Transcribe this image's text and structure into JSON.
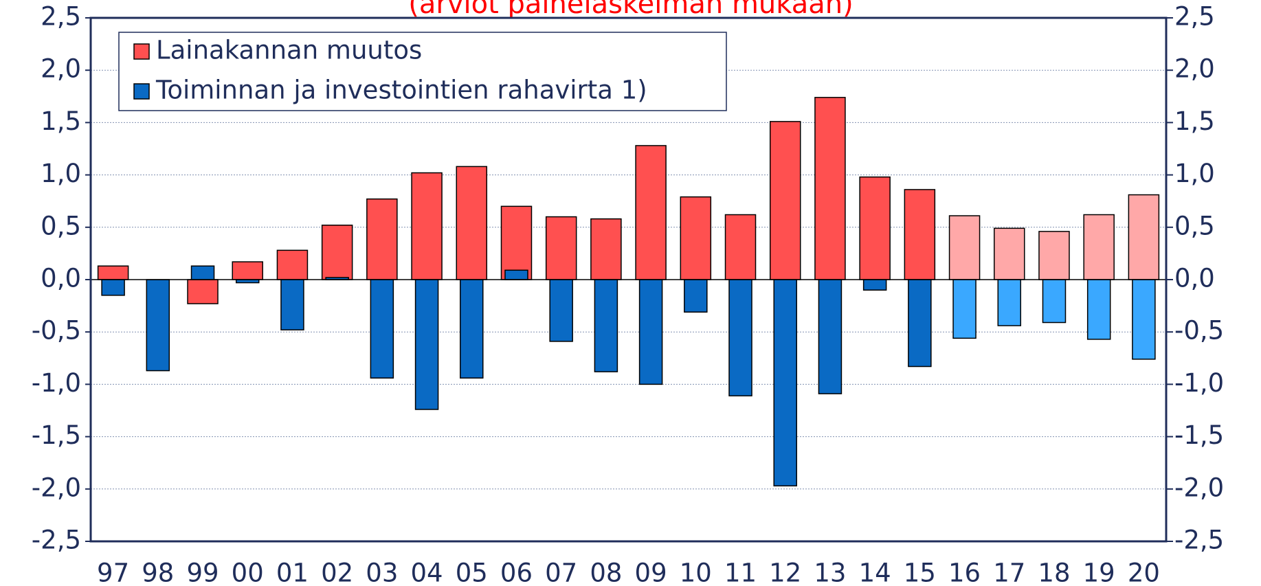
{
  "chart_data": {
    "type": "bar",
    "title": "(arviot painelaskelman mukaan)",
    "categories": [
      "97",
      "98",
      "99",
      "00",
      "01",
      "02",
      "03",
      "04",
      "05",
      "06",
      "07",
      "08",
      "09",
      "10",
      "11",
      "12",
      "13",
      "14",
      "15",
      "16",
      "17",
      "18",
      "19",
      "20"
    ],
    "series": [
      {
        "name": "Lainakannan muutos",
        "color": "#ff5050",
        "point_colors": [
          "#ff5050",
          "#ff5050",
          "#ff5050",
          "#ff5050",
          "#ff5050",
          "#ff5050",
          "#ff5050",
          "#ff5050",
          "#ff5050",
          "#ff5050",
          "#ff5050",
          "#ff5050",
          "#ff5050",
          "#ff5050",
          "#ff5050",
          "#ff5050",
          "#ff5050",
          "#ff5050",
          "#ff5050",
          "#ffa8a8",
          "#ffa8a8",
          "#ffa8a8",
          "#ffa8a8",
          "#ffa8a8"
        ],
        "values": [
          0.13,
          0,
          -0.23,
          0.17,
          0.28,
          0.52,
          0.77,
          1.02,
          1.08,
          0.7,
          0.6,
          0.58,
          1.28,
          0.79,
          0.62,
          1.51,
          1.74,
          0.98,
          0.86,
          0.61,
          0.49,
          0.46,
          0.62,
          0.81
        ]
      },
      {
        "name": "Toiminnan ja investointien rahavirta 1)",
        "color": "#0a6ac4",
        "point_colors": [
          "#0a6ac4",
          "#0a6ac4",
          "#0a6ac4",
          "#0a6ac4",
          "#0a6ac4",
          "#0a6ac4",
          "#0a6ac4",
          "#0a6ac4",
          "#0a6ac4",
          "#0a6ac4",
          "#0a6ac4",
          "#0a6ac4",
          "#0a6ac4",
          "#0a6ac4",
          "#0a6ac4",
          "#0a6ac4",
          "#0a6ac4",
          "#0a6ac4",
          "#0a6ac4",
          "#3aa8ff",
          "#3aa8ff",
          "#3aa8ff",
          "#3aa8ff",
          "#3aa8ff"
        ],
        "values": [
          -0.15,
          -0.87,
          0.13,
          -0.03,
          -0.48,
          0.02,
          -0.94,
          -1.24,
          -0.94,
          0.09,
          -0.59,
          -0.88,
          -1.0,
          -0.31,
          -1.11,
          -1.97,
          -1.09,
          -0.1,
          -0.83,
          -0.56,
          -0.44,
          -0.41,
          -0.57,
          -0.76
        ]
      }
    ],
    "ylim": [
      -2.5,
      2.5
    ],
    "yticks": [
      {
        "value": -2.5,
        "label": "-2,5"
      },
      {
        "value": -2,
        "label": "-2,0"
      },
      {
        "value": -1.5,
        "label": "-1,5"
      },
      {
        "value": -1,
        "label": "-1,0"
      },
      {
        "value": -0.5,
        "label": "-0,5"
      },
      {
        "value": 0,
        "label": "0,0"
      },
      {
        "value": 0.5,
        "label": "0,5"
      },
      {
        "value": 1,
        "label": "1,0"
      },
      {
        "value": 1.5,
        "label": "1,5"
      },
      {
        "value": 2,
        "label": "2,0"
      },
      {
        "value": 2.5,
        "label": "2,5"
      }
    ],
    "y2lim": [
      -2.5,
      2.5
    ],
    "y2ticks": [
      {
        "value": -2.5,
        "label": "-2,5"
      },
      {
        "value": -2,
        "label": "-2,0"
      },
      {
        "value": -1.5,
        "label": "-1,5"
      },
      {
        "value": -1,
        "label": "-1,0"
      },
      {
        "value": -0.5,
        "label": "-0,5"
      },
      {
        "value": 0,
        "label": "0,0"
      },
      {
        "value": 0.5,
        "label": "0,5"
      },
      {
        "value": 1,
        "label": "1,0"
      },
      {
        "value": 1.5,
        "label": "1,5"
      },
      {
        "value": 2,
        "label": "2,0"
      },
      {
        "value": 2.5,
        "label": "2,5"
      }
    ],
    "grid": true,
    "legend": "top-left"
  }
}
